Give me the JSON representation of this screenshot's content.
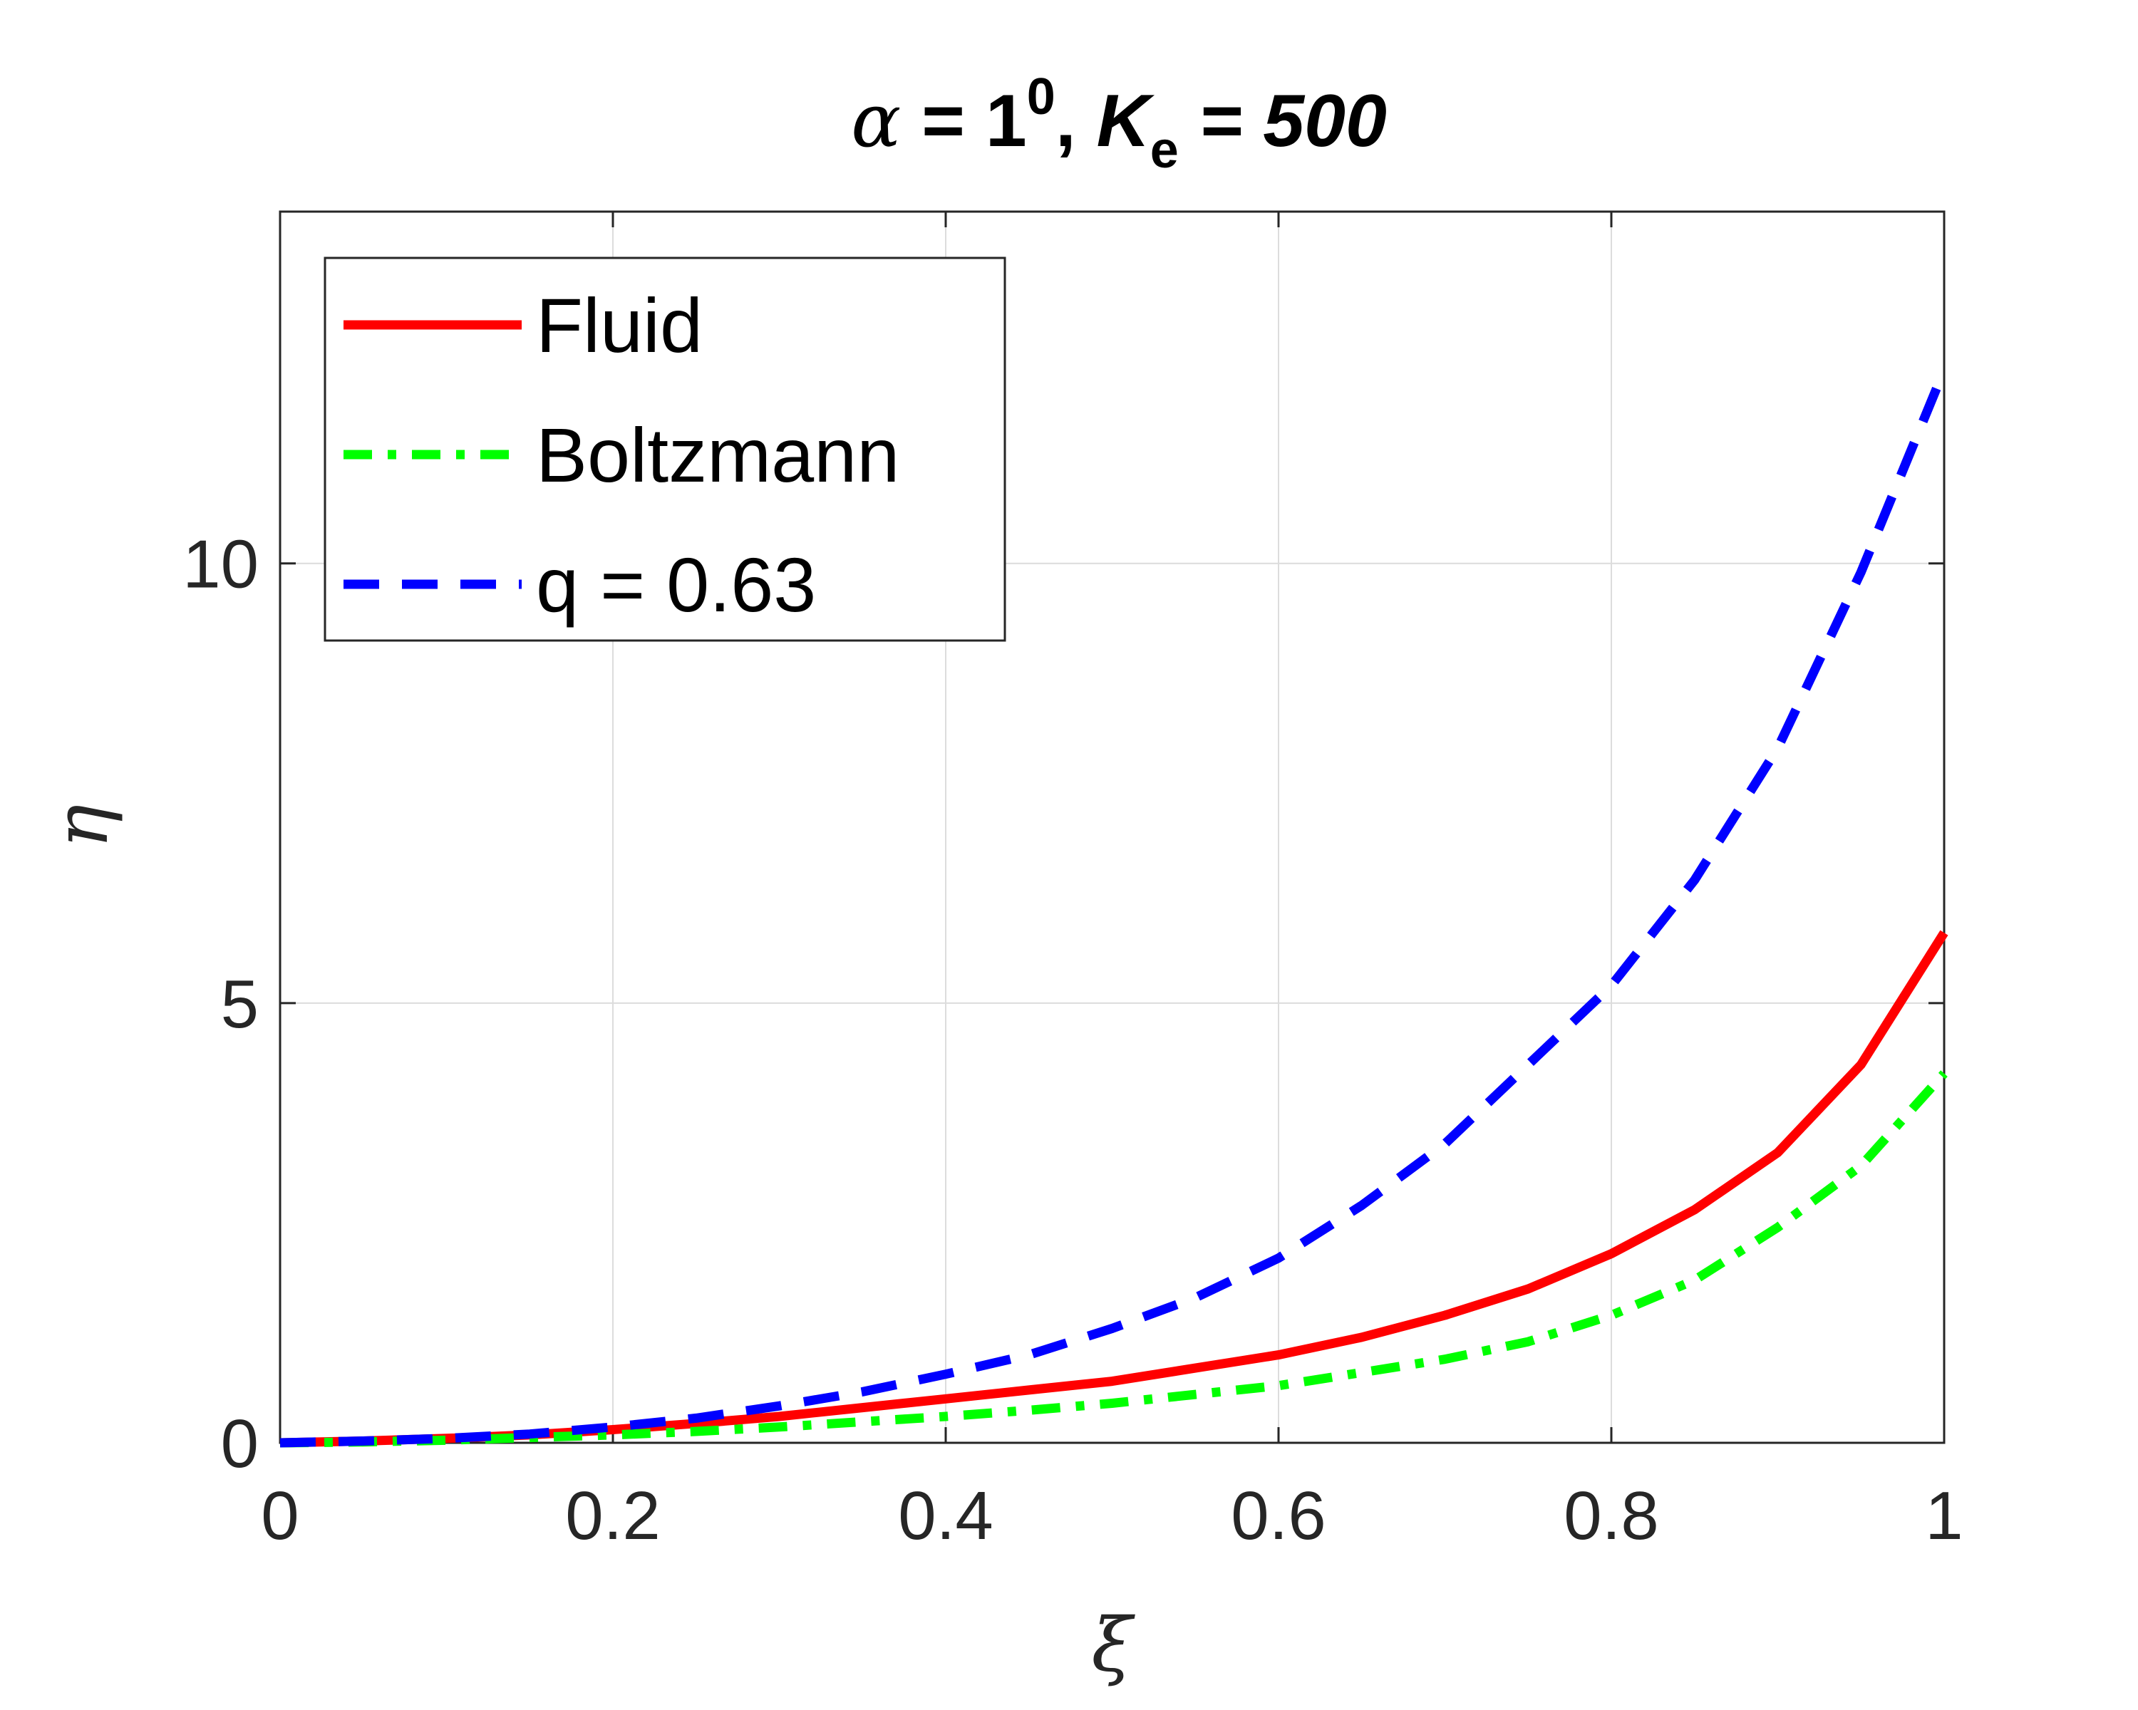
{
  "chart_data": {
    "type": "line",
    "title": {
      "alpha_symbol": "α",
      "alpha_eq": " = 1",
      "alpha_sup": "0",
      "sep": ",  ",
      "k_symbol": "K",
      "k_sub": "e",
      "k_eq": " = 500"
    },
    "xlabel": "ξ",
    "ylabel": "η",
    "xlim": [
      0,
      1
    ],
    "ylim": [
      0,
      14
    ],
    "xticks": [
      0,
      0.2,
      0.4,
      0.6,
      0.8,
      1
    ],
    "xtick_labels": [
      "0",
      "0.2",
      "0.4",
      "0.6",
      "0.8",
      "1"
    ],
    "yticks": [
      0,
      5,
      10
    ],
    "ytick_labels": [
      "0",
      "5",
      "10"
    ],
    "grid": true,
    "legend_position": "top-left",
    "x": [
      0,
      0.05,
      0.1,
      0.15,
      0.2,
      0.25,
      0.3,
      0.35,
      0.4,
      0.45,
      0.5,
      0.55,
      0.6,
      0.65,
      0.7,
      0.75,
      0.8,
      0.85,
      0.9,
      0.95,
      1.0
    ],
    "series": [
      {
        "name": "Fluid",
        "color": "#ff0000",
        "style": "solid",
        "values": [
          0,
          0.02,
          0.05,
          0.09,
          0.15,
          0.22,
          0.3,
          0.4,
          0.5,
          0.6,
          0.7,
          0.85,
          1.0,
          1.2,
          1.45,
          1.75,
          2.15,
          2.65,
          3.3,
          4.3,
          5.8
        ]
      },
      {
        "name": "Boltzmann",
        "color": "#00ff00",
        "style": "dashdot",
        "values": [
          0,
          0.01,
          0.03,
          0.06,
          0.09,
          0.13,
          0.18,
          0.24,
          0.3,
          0.37,
          0.45,
          0.55,
          0.65,
          0.8,
          0.95,
          1.15,
          1.45,
          1.85,
          2.45,
          3.15,
          4.2
        ]
      },
      {
        "name": "q = 0.63",
        "color": "#0000ff",
        "style": "dashed",
        "values": [
          0,
          0.02,
          0.05,
          0.1,
          0.18,
          0.28,
          0.42,
          0.58,
          0.78,
          1.0,
          1.3,
          1.65,
          2.1,
          2.7,
          3.4,
          4.3,
          5.2,
          6.4,
          7.9,
          9.9,
          12.2
        ]
      }
    ]
  }
}
